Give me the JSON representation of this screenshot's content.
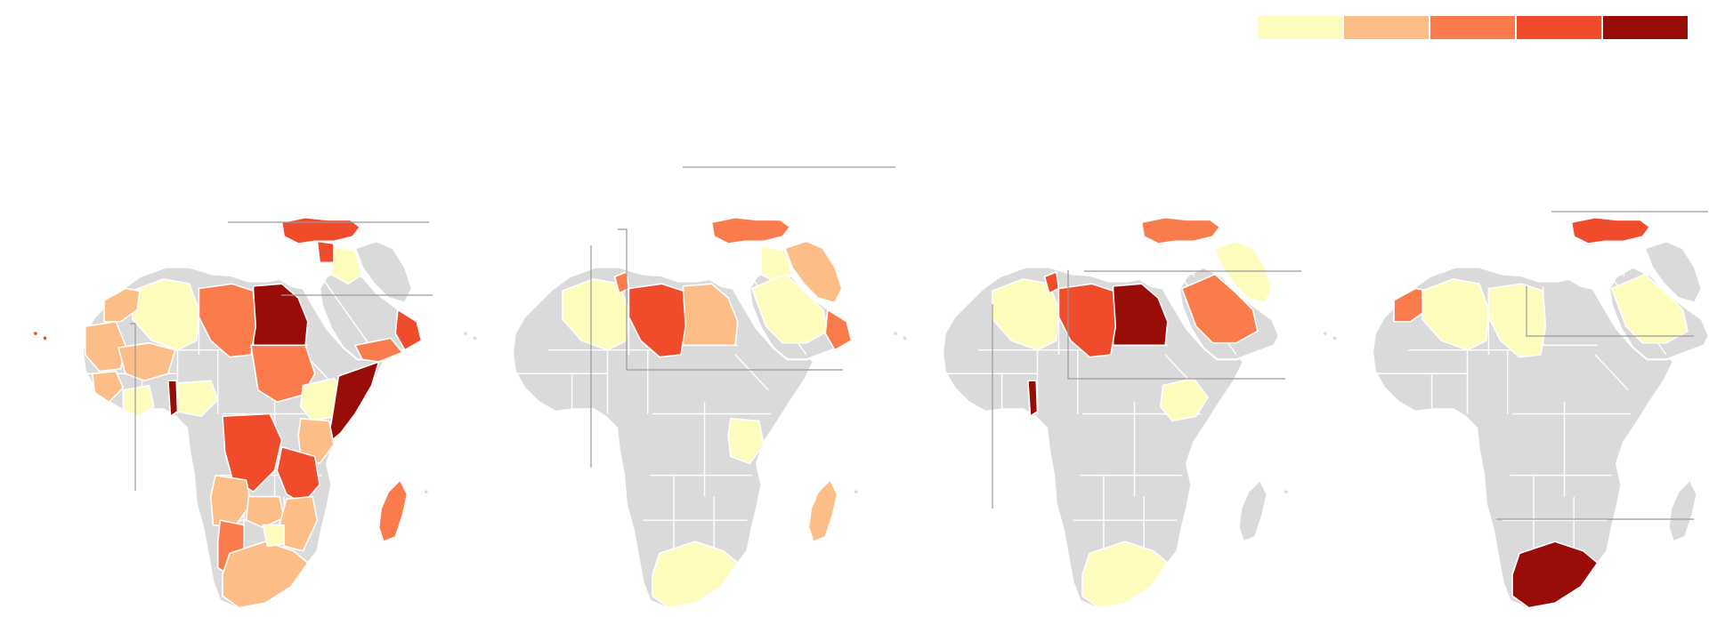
{
  "legend": {
    "colors": [
      "#fdfcbd",
      "#fdbd86",
      "#fa7c4c",
      "#f04b2a",
      "#990d08"
    ]
  },
  "panels": [
    {
      "countries": [
        {
          "name": "turkey",
          "level": 4
        },
        {
          "name": "iraq",
          "level": 1
        },
        {
          "name": "syria",
          "level": 4
        },
        {
          "name": "egypt",
          "level": 5
        },
        {
          "name": "libya",
          "level": 3
        },
        {
          "name": "algeria",
          "level": 1
        },
        {
          "name": "morocco",
          "level": 2
        },
        {
          "name": "mauritania",
          "level": 2
        },
        {
          "name": "mali",
          "level": 2
        },
        {
          "name": "niger",
          "level": 0
        },
        {
          "name": "chad",
          "level": 0
        },
        {
          "name": "sudan",
          "level": 3
        },
        {
          "name": "south-sudan",
          "level": 0
        },
        {
          "name": "ethiopia",
          "level": 1
        },
        {
          "name": "somalia",
          "level": 5
        },
        {
          "name": "kenya",
          "level": 2
        },
        {
          "name": "nigeria",
          "level": 1
        },
        {
          "name": "benin",
          "level": 5
        },
        {
          "name": "drc",
          "level": 4
        },
        {
          "name": "angola",
          "level": 2
        },
        {
          "name": "namibia",
          "level": 3
        },
        {
          "name": "south-africa",
          "level": 2
        },
        {
          "name": "madagascar",
          "level": 3
        },
        {
          "name": "tanzania",
          "level": 4
        },
        {
          "name": "saudi-arabia",
          "level": 0
        },
        {
          "name": "yemen",
          "level": 3
        },
        {
          "name": "oman",
          "level": 4
        },
        {
          "name": "guinea",
          "level": 2
        },
        {
          "name": "ivory-coast",
          "level": 1
        },
        {
          "name": "zambia",
          "level": 2
        },
        {
          "name": "mozambique",
          "level": 2
        },
        {
          "name": "zimbabwe",
          "level": 1
        }
      ]
    },
    {
      "countries": [
        {
          "name": "turkey",
          "level": 3
        },
        {
          "name": "iran",
          "level": 2
        },
        {
          "name": "iraq",
          "level": 1
        },
        {
          "name": "saudi-arabia",
          "level": 1
        },
        {
          "name": "egypt",
          "level": 2
        },
        {
          "name": "libya",
          "level": 4
        },
        {
          "name": "algeria",
          "level": 1
        },
        {
          "name": "tunisia",
          "level": 3
        },
        {
          "name": "oman",
          "level": 3
        },
        {
          "name": "kenya",
          "level": 1
        },
        {
          "name": "madagascar",
          "level": 2
        },
        {
          "name": "south-africa",
          "level": 1
        }
      ]
    },
    {
      "countries": [
        {
          "name": "turkey",
          "level": 3
        },
        {
          "name": "egypt",
          "level": 5
        },
        {
          "name": "libya",
          "level": 4
        },
        {
          "name": "algeria",
          "level": 1
        },
        {
          "name": "tunisia",
          "level": 4
        },
        {
          "name": "saudi-arabia",
          "level": 3
        },
        {
          "name": "iran",
          "level": 1
        },
        {
          "name": "ethiopia",
          "level": 1
        },
        {
          "name": "benin",
          "level": 5
        },
        {
          "name": "south-africa",
          "level": 1
        }
      ]
    },
    {
      "countries": [
        {
          "name": "turkey",
          "level": 4
        },
        {
          "name": "morocco",
          "level": 3
        },
        {
          "name": "algeria",
          "level": 1
        },
        {
          "name": "libya",
          "level": 1
        },
        {
          "name": "saudi-arabia",
          "level": 1
        },
        {
          "name": "south-africa",
          "level": 5
        }
      ]
    }
  ]
}
